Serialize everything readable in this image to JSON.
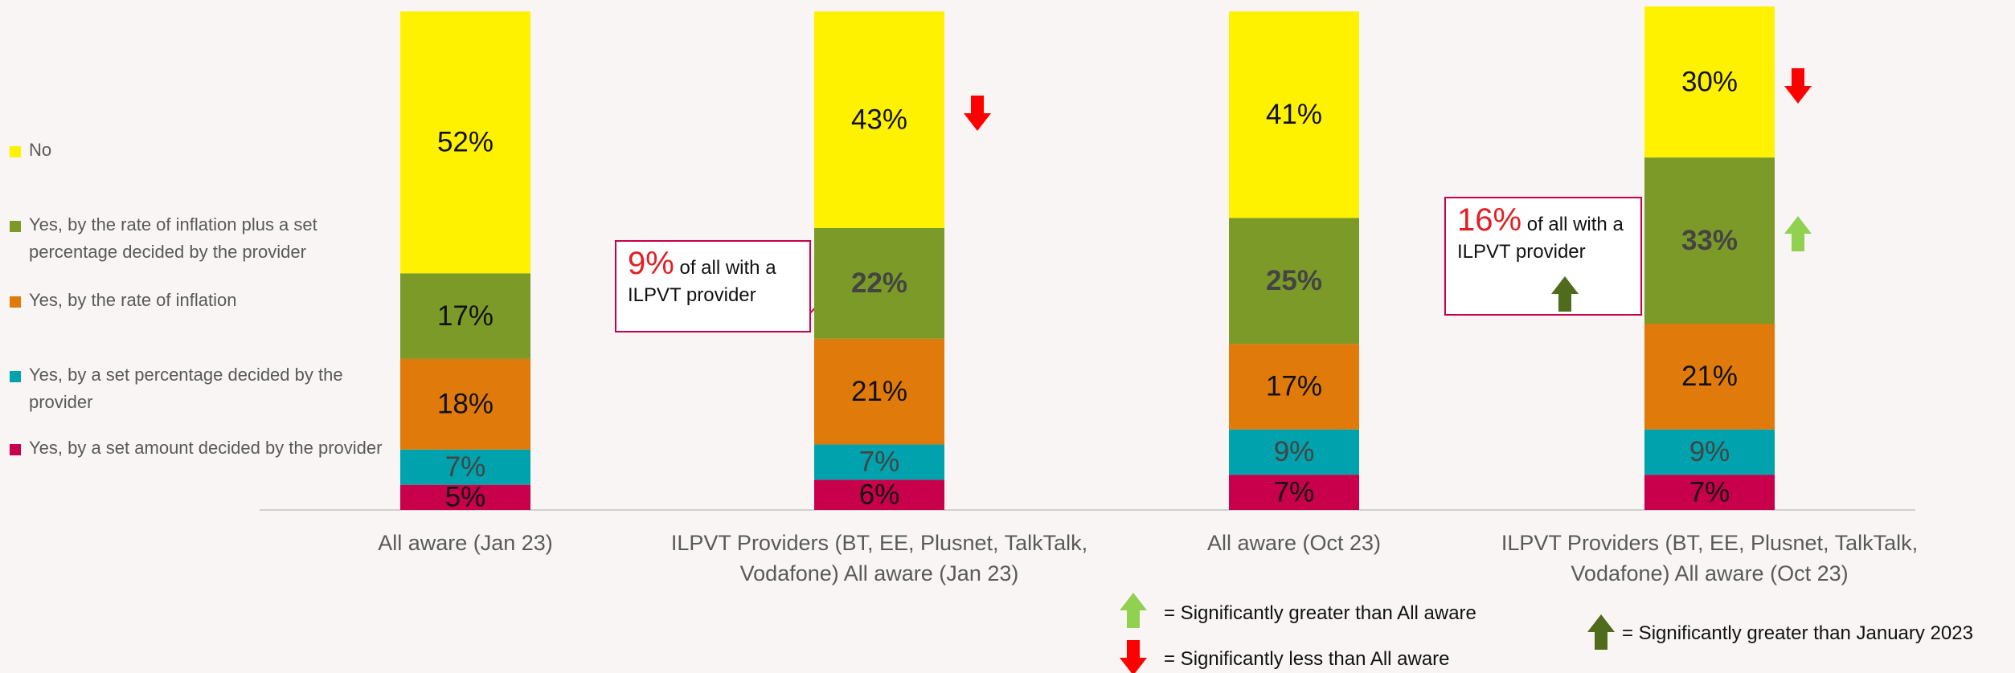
{
  "chart_data": {
    "type": "bar",
    "stacked": true,
    "categories": [
      "All aware (Jan 23)",
      "ILPVT Providers (BT, EE, Plusnet, TalkTalk, Vodafone) All aware (Jan 23)",
      "All aware (Oct 23)",
      "ILPVT Providers (BT, EE, Plusnet, TalkTalk, Vodafone) All aware (Oct 23)"
    ],
    "series": [
      {
        "name": "Yes, by a set amount decided by the provider",
        "color": "#c8004b",
        "values": [
          5,
          6,
          7,
          7
        ],
        "value_labels": [
          "5%",
          "6%",
          "7%",
          "7%"
        ]
      },
      {
        "name": "Yes, by a set percentage decided by the provider",
        "color": "#00a3ad",
        "values": [
          7,
          7,
          9,
          9
        ],
        "value_labels": [
          "7%",
          "7%",
          "9%",
          "9%"
        ]
      },
      {
        "name": "Yes, by the rate of inflation",
        "color": "#e07a0a",
        "values": [
          18,
          21,
          17,
          21
        ],
        "value_labels": [
          "18%",
          "21%",
          "17%",
          "21%"
        ]
      },
      {
        "name": "Yes, by the rate of inflation plus a set percentage decided by the provider",
        "color": "#7c9a27",
        "values": [
          17,
          22,
          25,
          33
        ],
        "value_labels": [
          "17%",
          "22%",
          "25%",
          "33%"
        ]
      },
      {
        "name": "No",
        "color": "#fff200",
        "values": [
          52,
          43,
          41,
          30
        ],
        "value_labels": [
          "52%",
          "43%",
          "41%",
          "30%"
        ]
      }
    ],
    "ylim": [
      0,
      100
    ],
    "legend": "left",
    "callouts": [
      {
        "value_label": "9%",
        "text": "of all with a ILPVT provider"
      },
      {
        "value_label": "16%",
        "text": "of all with a ILPVT provider"
      }
    ],
    "key": [
      "= Significantly greater than All aware",
      "= Significantly less than All aware",
      "= Significantly greater than January 2023"
    ]
  }
}
